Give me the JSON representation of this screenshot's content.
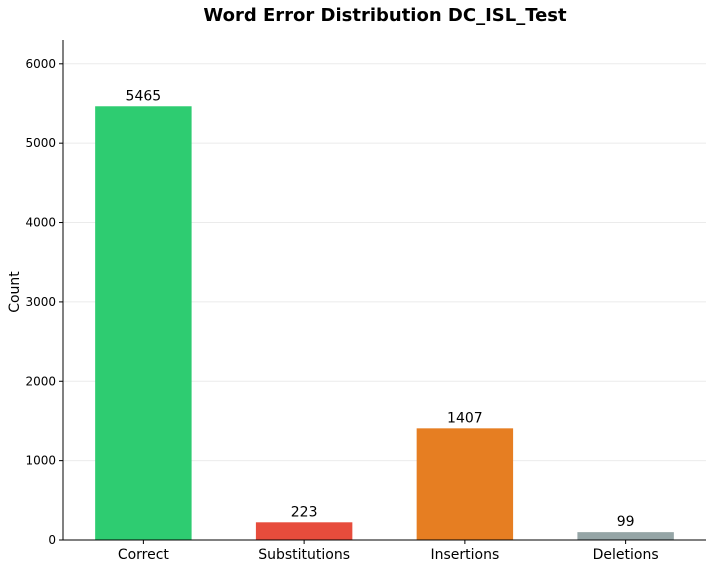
{
  "chart_data": {
    "type": "bar",
    "title": "Word Error Distribution DC_ISL_Test",
    "xlabel": "",
    "ylabel": "Count",
    "categories": [
      "Correct",
      "Substitutions",
      "Insertions",
      "Deletions"
    ],
    "values": [
      5465,
      223,
      1407,
      99
    ],
    "data_labels": [
      "5465",
      "223",
      "1407",
      "99"
    ],
    "colors": [
      "#2ecc71",
      "#e74c3c",
      "#e67e22",
      "#95a5a6"
    ],
    "ylim": [
      0,
      6300
    ],
    "yticks": [
      0,
      1000,
      2000,
      3000,
      4000,
      5000,
      6000
    ],
    "ytick_labels": [
      "0",
      "1000",
      "2000",
      "3000",
      "4000",
      "5000",
      "6000"
    ],
    "grid": true,
    "legend": "none"
  }
}
